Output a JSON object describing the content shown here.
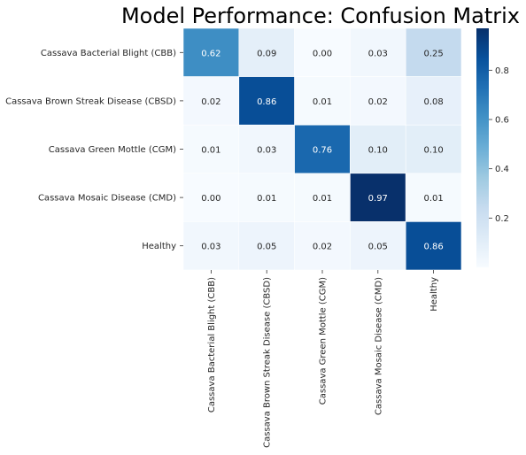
{
  "chart_data": {
    "type": "heatmap",
    "title": "Model Performance: Confusion Matrix",
    "xlabel": "",
    "ylabel": "",
    "rows": [
      "Cassava Bacterial Blight (CBB)",
      "Cassava Brown Streak Disease (CBSD)",
      "Cassava Green Mottle (CGM)",
      "Cassava Mosaic Disease (CMD)",
      "Healthy"
    ],
    "columns": [
      "Cassava Bacterial Blight (CBB)",
      "Cassava Brown Streak Disease (CBSD)",
      "Cassava Green Mottle (CGM)",
      "Cassava Mosaic Disease (CMD)",
      "Healthy"
    ],
    "values": [
      [
        0.62,
        0.09,
        0.0,
        0.03,
        0.25
      ],
      [
        0.02,
        0.86,
        0.01,
        0.02,
        0.08
      ],
      [
        0.01,
        0.03,
        0.76,
        0.1,
        0.1
      ],
      [
        0.0,
        0.01,
        0.01,
        0.97,
        0.01
      ],
      [
        0.03,
        0.05,
        0.02,
        0.05,
        0.86
      ]
    ],
    "value_format": "0.00",
    "colormap": "Blues",
    "colorbar": {
      "range": [
        0.0,
        0.97
      ],
      "ticks": [
        0.2,
        0.4,
        0.6,
        0.8
      ],
      "tick_labels": [
        "0.2",
        "0.4",
        "0.6",
        "0.8"
      ]
    },
    "grid": false,
    "legend": "colorbar-right"
  }
}
